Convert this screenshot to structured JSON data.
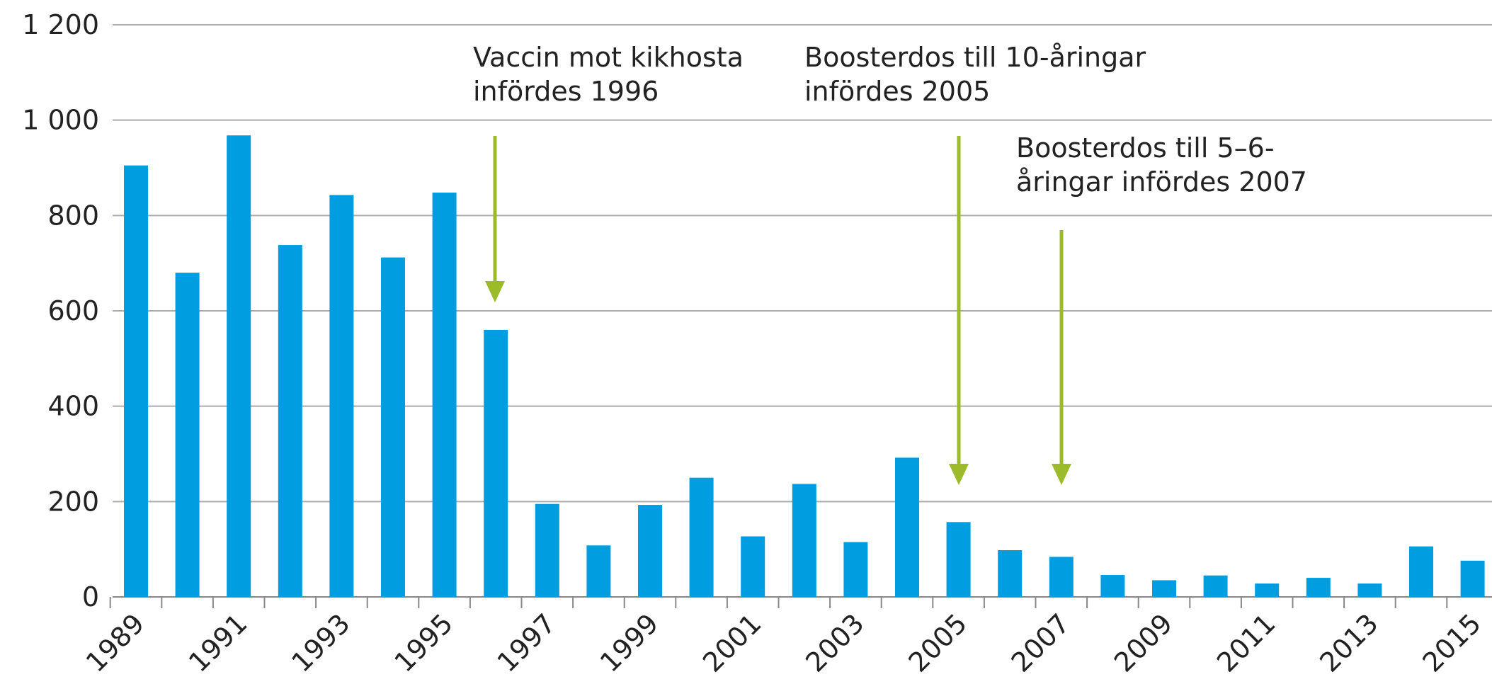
{
  "chart_data": {
    "type": "bar",
    "categories": [
      "1989",
      null,
      "1991",
      null,
      "1993",
      null,
      "1995",
      null,
      "1997",
      null,
      "1999",
      null,
      "2001",
      null,
      "2003",
      null,
      "2005",
      null,
      "2007",
      null,
      "2009",
      null,
      "2011",
      null,
      "2013",
      null,
      "2015"
    ],
    "values": [
      905,
      680,
      968,
      738,
      843,
      712,
      848,
      560,
      195,
      108,
      193,
      250,
      127,
      237,
      115,
      292,
      157,
      98,
      84,
      46,
      35,
      45,
      28,
      40,
      28,
      106,
      76
    ],
    "color": "#009ee0",
    "ylim": [
      0,
      1200
    ],
    "yticks": [
      0,
      200,
      400,
      600,
      800,
      {
        "value": 1000,
        "label": "1 000"
      },
      {
        "value": 1200,
        "label": "1 200"
      }
    ],
    "grid": true,
    "annotations": [
      {
        "lines": [
          "Vaccin mot kikhosta",
          "infördes 1996"
        ]
      },
      {
        "lines": [
          "Boosterdos till 10-åringar",
          "infördes 2005"
        ]
      },
      {
        "lines": [
          "Boosterdos till 5–6-",
          "åringar infördes 2007"
        ]
      }
    ],
    "annotation_color": "#9bbb2a"
  }
}
